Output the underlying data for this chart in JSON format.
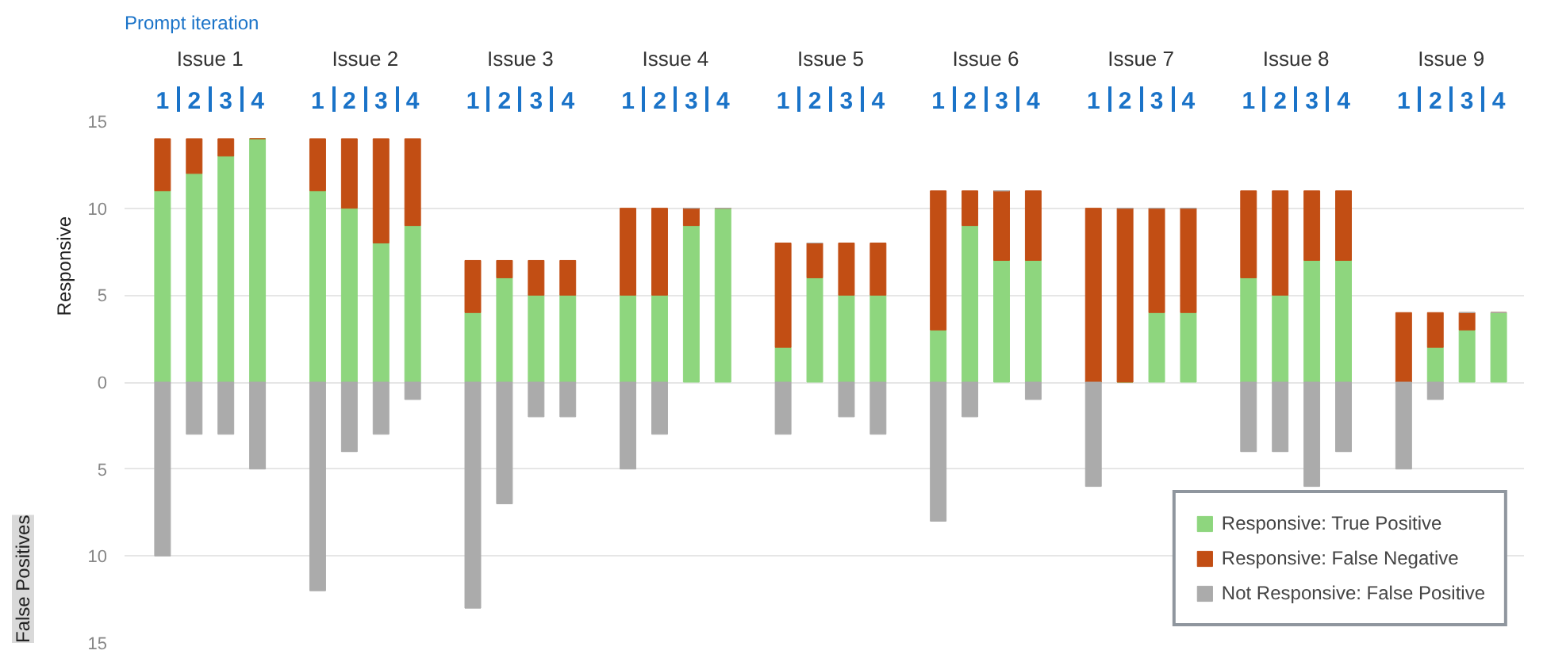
{
  "chart_data": {
    "type": "bar",
    "stacked": true,
    "ylabel": "Responsive",
    "categories": [
      "1",
      "2",
      "3",
      "4",
      "1",
      "2",
      "3",
      "4",
      "1",
      "2",
      "3",
      "4",
      "1",
      "2",
      "3",
      "4",
      "1",
      "2",
      "3",
      "4",
      "1",
      "2",
      "3",
      "4",
      "1",
      "2",
      "3",
      "4",
      "1",
      "2",
      "3",
      "4",
      "1",
      "2",
      "3",
      "4"
    ],
    "series": [
      {
        "name": "Responsive: True Positive",
        "color": "#8ed67e",
        "values": [
          11,
          12,
          13,
          14,
          11,
          10,
          8,
          9,
          4,
          6,
          5,
          5,
          5,
          5,
          9,
          10,
          2,
          6,
          5,
          5,
          3,
          9,
          7,
          7,
          0,
          0,
          4,
          4,
          6,
          5,
          7,
          7,
          0,
          2,
          3,
          4
        ]
      },
      {
        "name": "Responsive: False Negative",
        "color": "#c24e14",
        "values": [
          3,
          2,
          1,
          0,
          3,
          4,
          6,
          5,
          3,
          1,
          2,
          2,
          5,
          5,
          1,
          0,
          6,
          2,
          3,
          3,
          8,
          2,
          4,
          4,
          10,
          10,
          6,
          6,
          5,
          6,
          4,
          4,
          4,
          2,
          1,
          0
        ]
      },
      {
        "name": "Not Responsive: False Positive",
        "color": "#ababab",
        "values": [
          -10,
          -3,
          -3,
          -5,
          -12,
          -4,
          -3,
          -1,
          -13,
          -7,
          -2,
          -2,
          -5,
          -3,
          0,
          0,
          -3,
          0,
          -2,
          -3,
          -8,
          -2,
          0,
          -1,
          -6,
          0,
          0,
          0,
          -4,
          -4,
          -6,
          -4,
          -5,
          -1,
          0,
          0
        ]
      }
    ],
    "ylim": [
      -15,
      15
    ],
    "yticks": [
      {
        "value": -15,
        "label": "15"
      },
      {
        "value": -10,
        "label": "10"
      },
      {
        "value": -5,
        "label": "5"
      },
      0,
      5,
      10,
      15
    ],
    "grid": "y",
    "legend": "bottom right",
    "annotations": [
      "Prompt iteration",
      "False Positives",
      "Issue 1",
      "Issue 2",
      "Issue 3",
      "Issue 4",
      "Issue 5",
      "Issue 6",
      "Issue 7",
      "Issue 8",
      "Issue 9"
    ]
  }
}
